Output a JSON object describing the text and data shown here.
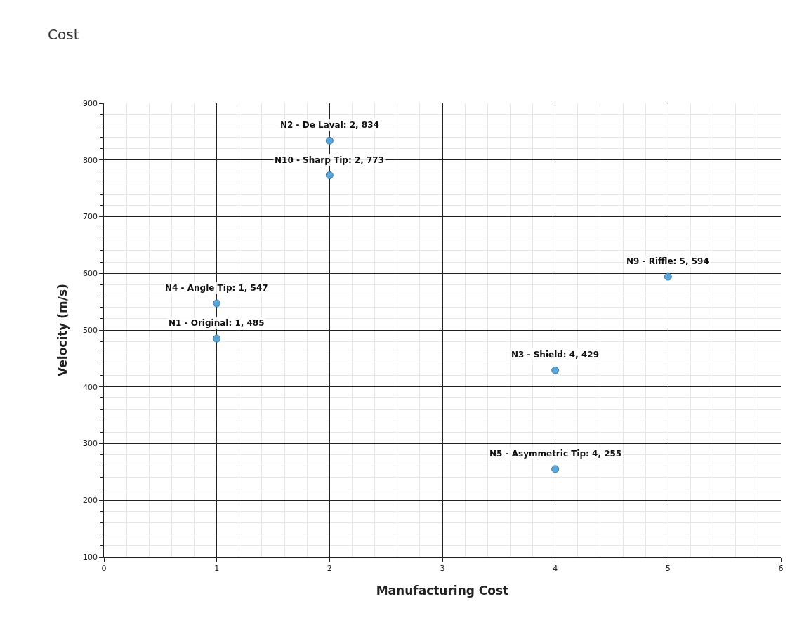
{
  "chart_data": {
    "type": "scatter",
    "title": "Cost",
    "xlabel": "Manufacturing Cost",
    "ylabel": "Velocity (m/s)",
    "x": [
      2,
      2,
      5,
      1,
      1,
      4,
      4
    ],
    "values": [
      834,
      773,
      594,
      547,
      485,
      429,
      255
    ],
    "color": "#5aa6d8",
    "marker": "circle",
    "grid": true,
    "legend": false,
    "xlim": [
      0,
      6
    ],
    "xticks": [
      0,
      1,
      2,
      3,
      4,
      5,
      6
    ],
    "ylim": [
      100,
      900
    ],
    "yticks": [
      100,
      200,
      300,
      400,
      500,
      600,
      700,
      800,
      900
    ],
    "annotations": [
      {
        "text": "N2 - De Laval: 2, 834",
        "x": 2,
        "y": 834
      },
      {
        "text": "N10 - Sharp Tip: 2, 773",
        "x": 2,
        "y": 773
      },
      {
        "text": "N9 - Riffle: 5, 594",
        "x": 5,
        "y": 594
      },
      {
        "text": "N4 - Angle Tip: 1, 547",
        "x": 1,
        "y": 547
      },
      {
        "text": "N1 - Original: 1, 485",
        "x": 1,
        "y": 485
      },
      {
        "text": "N3 - Shield: 4, 429",
        "x": 4,
        "y": 429
      },
      {
        "text": "N5 - Asymmetric Tip: 4, 255",
        "x": 4,
        "y": 255
      }
    ]
  }
}
